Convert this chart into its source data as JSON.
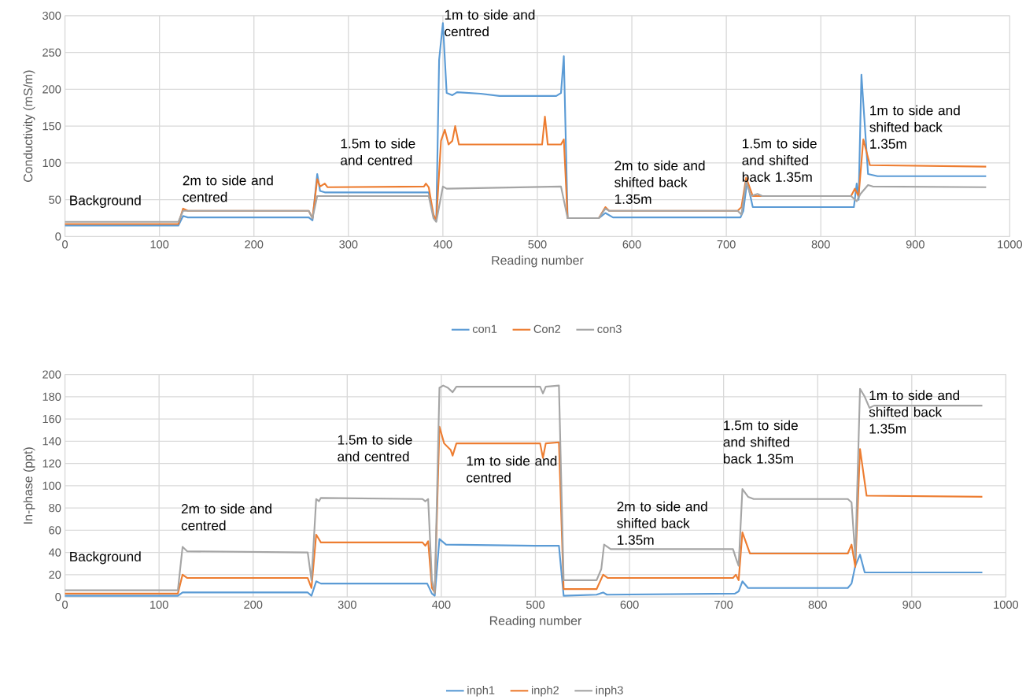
{
  "chart_data": [
    {
      "type": "line",
      "xlabel": "Reading number",
      "ylabel": "Conductivity (mS/m)",
      "xlim": [
        0,
        1000
      ],
      "ylim": [
        0,
        300
      ],
      "xticks": [
        0,
        100,
        200,
        300,
        400,
        500,
        600,
        700,
        800,
        900,
        1000
      ],
      "yticks": [
        0,
        50,
        100,
        150,
        200,
        250,
        300
      ],
      "grid": true,
      "legend": "bottom",
      "marker": "none",
      "line_style": "solid",
      "series": [
        {
          "name": "con1",
          "color": "#5b9bd5",
          "x": [
            0,
            120,
            125,
            130,
            258,
            262,
            265,
            267,
            270,
            275,
            385,
            390,
            393,
            396,
            400,
            404,
            410,
            415,
            440,
            460,
            520,
            525,
            528,
            532,
            565,
            572,
            580,
            715,
            718,
            722,
            728,
            835,
            838,
            840,
            843,
            850,
            860,
            975
          ],
          "values": [
            15,
            15,
            28,
            26,
            26,
            22,
            60,
            85,
            62,
            60,
            60,
            28,
            22,
            240,
            290,
            195,
            192,
            196,
            194,
            191,
            191,
            195,
            245,
            25,
            25,
            32,
            26,
            26,
            35,
            75,
            40,
            40,
            72,
            50,
            220,
            85,
            82,
            82
          ]
        },
        {
          "name": "Con2",
          "color": "#ed7d31",
          "x": [
            0,
            120,
            125,
            130,
            258,
            262,
            267,
            270,
            275,
            278,
            380,
            382,
            385,
            390,
            393,
            398,
            402,
            406,
            410,
            413,
            417,
            505,
            508,
            511,
            525,
            528,
            532,
            565,
            572,
            576,
            712,
            716,
            721,
            728,
            832,
            836,
            840,
            845,
            852,
            975
          ],
          "values": [
            17,
            17,
            38,
            35,
            35,
            25,
            78,
            68,
            72,
            67,
            68,
            72,
            67,
            30,
            22,
            130,
            145,
            125,
            130,
            150,
            125,
            125,
            163,
            125,
            125,
            132,
            25,
            25,
            40,
            35,
            35,
            40,
            80,
            55,
            55,
            65,
            55,
            132,
            97,
            95
          ]
        },
        {
          "name": "con3",
          "color": "#a5a5a5",
          "x": [
            0,
            120,
            125,
            258,
            262,
            267,
            385,
            390,
            393,
            400,
            404,
            525,
            532,
            565,
            572,
            576,
            712,
            716,
            721,
            726,
            733,
            738,
            832,
            838,
            842,
            850,
            855,
            975
          ],
          "values": [
            20,
            20,
            35,
            35,
            25,
            55,
            55,
            25,
            20,
            68,
            65,
            68,
            25,
            25,
            38,
            35,
            35,
            30,
            75,
            55,
            58,
            55,
            55,
            48,
            58,
            70,
            68,
            67
          ]
        }
      ],
      "annotations": [
        "Background",
        "2m to side and centred",
        "1.5m to side and centred",
        "1m to side and centred",
        "2m to side and shifted back 1.35m",
        "1.5m to side and shifted back 1.35m",
        "1m to side and shifted back 1.35m"
      ]
    },
    {
      "type": "line",
      "xlabel": "Reading number",
      "ylabel": "In-phase (ppt)",
      "xlim": [
        0,
        1000
      ],
      "ylim": [
        0,
        200
      ],
      "xticks": [
        0,
        100,
        200,
        300,
        400,
        500,
        600,
        700,
        800,
        900,
        1000
      ],
      "yticks": [
        0,
        20,
        40,
        60,
        80,
        100,
        120,
        140,
        160,
        180,
        200
      ],
      "grid": true,
      "legend": "bottom",
      "marker": "none",
      "line_style": "solid",
      "series": [
        {
          "name": "inph1",
          "color": "#5b9bd5",
          "x": [
            0,
            120,
            125,
            258,
            262,
            267,
            272,
            385,
            390,
            393,
            398,
            405,
            500,
            525,
            530,
            565,
            572,
            576,
            712,
            716,
            720,
            726,
            832,
            836,
            840,
            845,
            850,
            975
          ],
          "values": [
            1,
            1,
            4,
            4,
            1,
            14,
            12,
            12,
            3,
            1,
            52,
            47,
            46,
            46,
            1,
            2,
            4,
            2,
            3,
            5,
            14,
            8,
            8,
            12,
            28,
            38,
            22,
            22
          ]
        },
        {
          "name": "inph2",
          "color": "#ed7d31",
          "x": [
            0,
            120,
            125,
            130,
            258,
            262,
            267,
            272,
            380,
            383,
            386,
            390,
            393,
            398,
            403,
            410,
            412,
            416,
            505,
            508,
            511,
            525,
            530,
            565,
            572,
            577,
            710,
            713,
            716,
            720,
            728,
            832,
            836,
            840,
            845,
            852,
            975
          ],
          "values": [
            3,
            3,
            20,
            17,
            17,
            8,
            56,
            49,
            49,
            46,
            50,
            8,
            4,
            153,
            138,
            132,
            127,
            138,
            138,
            125,
            138,
            139,
            7,
            7,
            20,
            17,
            17,
            20,
            15,
            58,
            39,
            39,
            47,
            27,
            133,
            91,
            90
          ]
        },
        {
          "name": "inph3",
          "color": "#a5a5a5",
          "x": [
            0,
            120,
            125,
            130,
            258,
            262,
            267,
            270,
            272,
            380,
            383,
            386,
            390,
            393,
            398,
            402,
            407,
            412,
            416,
            505,
            508,
            511,
            525,
            530,
            565,
            570,
            573,
            580,
            710,
            713,
            716,
            720,
            726,
            732,
            832,
            836,
            840,
            845,
            850,
            855,
            860,
            975
          ],
          "values": [
            6,
            6,
            45,
            41,
            40,
            15,
            88,
            86,
            89,
            88,
            86,
            88,
            15,
            3,
            188,
            190,
            188,
            184,
            189,
            189,
            183,
            189,
            190,
            15,
            15,
            25,
            47,
            43,
            43,
            35,
            28,
            97,
            90,
            88,
            88,
            85,
            35,
            187,
            180,
            170,
            172,
            172
          ]
        }
      ],
      "annotations": [
        "Background",
        "2m to side and centred",
        "1.5m to side and centred",
        "1m to side and centred",
        "2m to side and shifted back 1.35m",
        "1.5m to side and shifted back 1.35m",
        "1m to side and shifted back 1.35m"
      ]
    }
  ]
}
